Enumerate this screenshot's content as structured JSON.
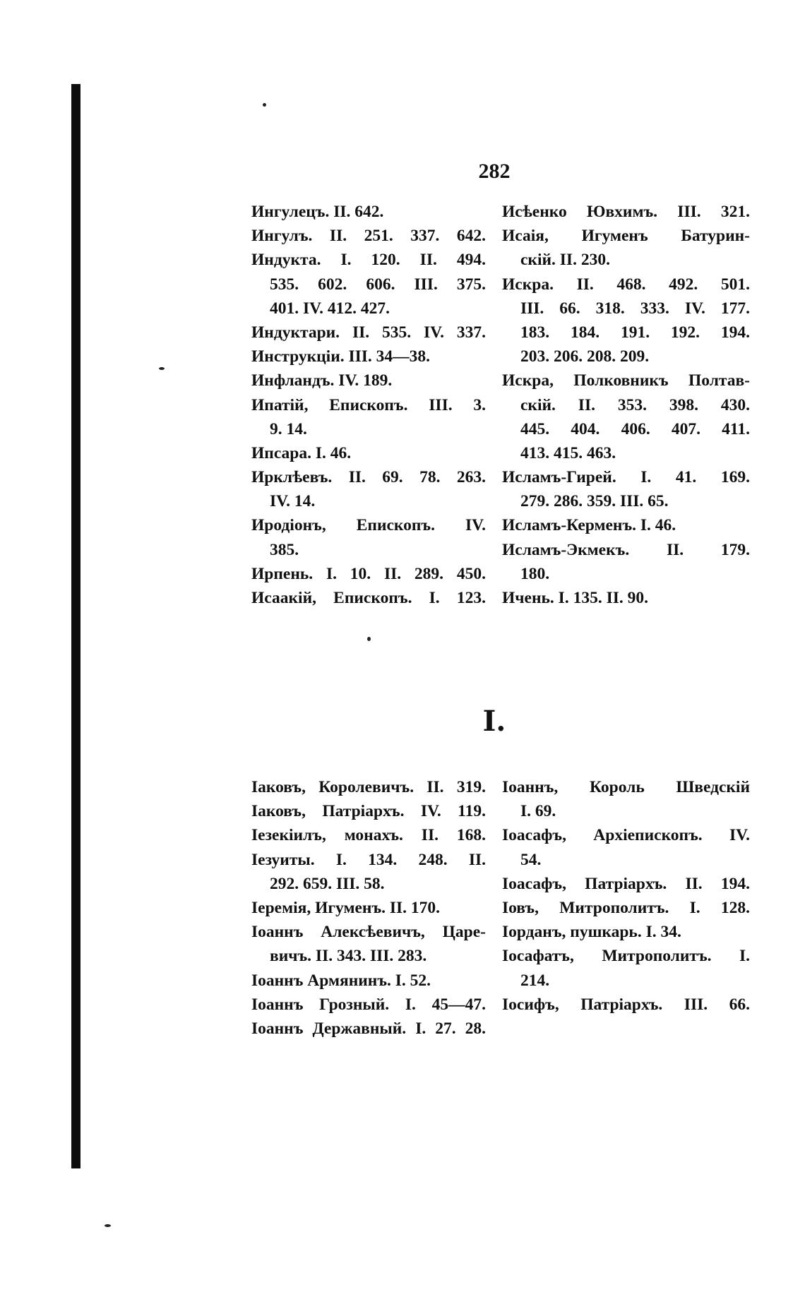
{
  "page_number": "282",
  "section_letter": "І.",
  "index_block_1": {
    "left_column": [
      "Ингулецъ. II. 642.",
      "Ингулъ. II. 251. 337. 642.",
      "Индукта. I. 120. II. 494.",
      "535. 602. 606. III. 375.",
      "401. IV. 412. 427.",
      "Индуктари. II. 535. IV. 337.",
      "Инструкціи. III. 34—38.",
      "Инфландъ. IV. 189.",
      "Ипатій, Епископъ. III. 3.",
      "9. 14.",
      "Ипсара. I. 46.",
      "Ирклѣевъ. II. 69. 78. 263.",
      "IV. 14.",
      "Иродіонъ, Епископъ. IV.",
      "385.",
      "Ирпень. I. 10. II. 289. 450.",
      "Исаакій, Епископъ. I. 123."
    ],
    "right_column": [
      "Исѣенко Ювхимъ. III. 321.",
      "Исаія, Игуменъ Батурин-",
      "скій. II. 230.",
      "Искра. II. 468. 492. 501.",
      "III. 66. 318. 333. IV. 177.",
      "183. 184. 191. 192. 194.",
      "203. 206. 208. 209.",
      "Искра, Полковникъ Полтав-",
      "скій. II. 353. 398. 430.",
      "445. 404. 406. 407. 411.",
      "413. 415. 463.",
      "Исламъ-Гирей. I. 41. 169.",
      "279. 286. 359. III. 65.",
      "Исламъ-Керменъ. I. 46.",
      "Исламъ-Экмекъ. II. 179.",
      "180.",
      "Ичень. I. 135. II. 90."
    ]
  },
  "index_block_2": {
    "left_column": [
      "Іаковъ, Королевичъ. II. 319.",
      "Іаковъ, Патріархъ. IV. 119.",
      "Іезекіилъ, монахъ. II. 168.",
      "Іезуиты. I. 134. 248. II.",
      "292. 659. III. 58.",
      "Іеремія, Игуменъ. II. 170.",
      "Іоаннъ Алексѣевичъ, Царе-",
      "вичъ. II. 343. III. 283.",
      "Іоаннъ Армянинъ. I. 52.",
      "Іоаннъ Грозный. I. 45—47.",
      "Іоаннъ Державный. I. 27. 28."
    ],
    "right_column": [
      "Іоаннъ, Король Шведскій",
      "I. 69.",
      "Іоасафъ, Архіепископъ. IV.",
      "54.",
      "Іоасафъ, Патріархъ. II. 194.",
      "Іовъ, Митрополитъ. I. 128.",
      "Іорданъ, пушкарь. I. 34.",
      "Іосафатъ, Митрополитъ. I.",
      "214.",
      "Іосифъ, Патріархъ. III. 66."
    ]
  }
}
